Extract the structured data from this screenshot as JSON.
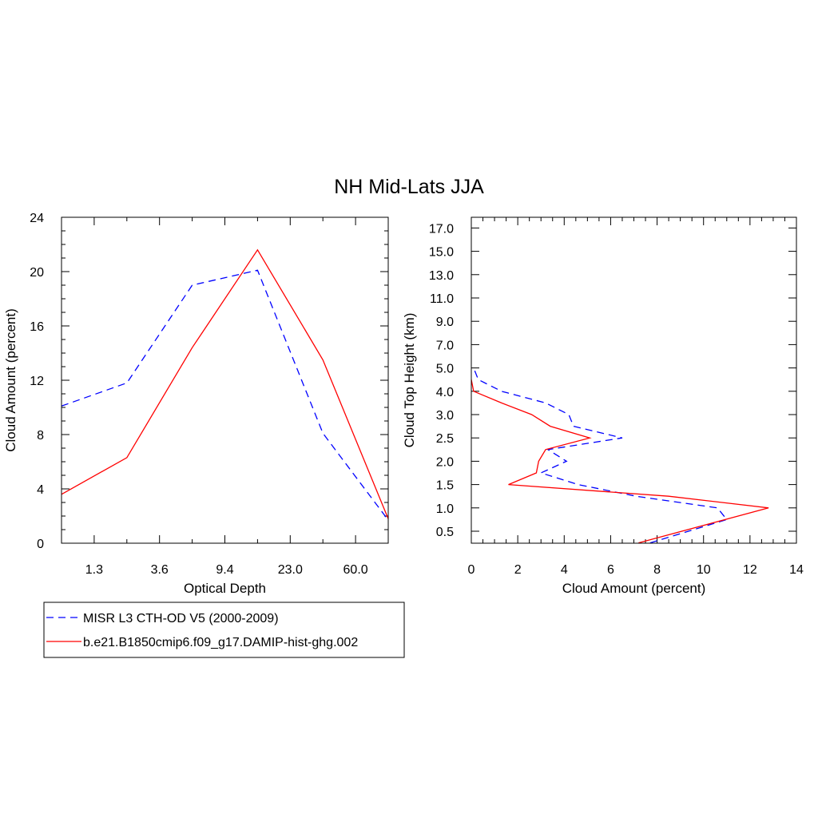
{
  "title": "NH Mid-Lats JJA",
  "chart_data": [
    {
      "type": "line",
      "xlabel": "Optical Depth",
      "ylabel": "Cloud Amount (percent)",
      "categories": [
        "",
        "1.3",
        "",
        "3.6",
        "",
        "9.4",
        "",
        "23.0",
        "",
        "60.0",
        ""
      ],
      "ylim": [
        0,
        24
      ],
      "yticks": [
        "0",
        "4",
        "8",
        "12",
        "16",
        "20",
        "24"
      ],
      "series": [
        {
          "name": "MISR L3 CTH-OD V5 (2000-2009)",
          "color": "#0000ff",
          "dash": "dashed",
          "x": [
            0,
            2,
            4,
            6,
            8,
            10
          ],
          "y": [
            10.1,
            11.8,
            19.0,
            20.1,
            8.1,
            1.7
          ]
        },
        {
          "name": "b.e21.B1850cmip6.f09_g17.DAMIP-hist-ghg.002",
          "color": "#ff0000",
          "dash": "solid",
          "x": [
            0,
            2,
            4,
            6,
            8,
            10
          ],
          "y": [
            3.6,
            6.3,
            14.4,
            21.6,
            13.5,
            1.8
          ]
        }
      ]
    },
    {
      "type": "line",
      "xlabel": "Cloud Amount (percent)",
      "ylabel": "Cloud Top Height (km)",
      "xlim": [
        0,
        14
      ],
      "xticks": [
        "0",
        "2",
        "4",
        "6",
        "8",
        "10",
        "12",
        "14"
      ],
      "ytick_labels": [
        "0.5",
        "1.0",
        "1.5",
        "2.0",
        "2.5",
        "3.0",
        "4.0",
        "5.0",
        "7.0",
        "9.0",
        "11.0",
        "13.0",
        "15.0",
        "17.0"
      ],
      "series": [
        {
          "name": "MISR L3 CTH-OD V5 (2000-2009)",
          "color": "#0000ff",
          "dash": "dashed",
          "x": [
            7.7,
            11.0,
            10.6,
            7.1,
            4.6,
            3.0,
            4.1,
            3.3,
            6.5,
            4.4,
            4.2,
            3.2,
            1.3,
            0.3,
            0.1
          ],
          "y_index": [
            -0.5,
            0.5,
            1.0,
            1.5,
            2.0,
            2.5,
            3.0,
            3.5,
            4.0,
            4.5,
            5.0,
            5.5,
            6.0,
            6.5,
            7.0
          ]
        },
        {
          "name": "b.e21.B1850cmip6.f09_g17.DAMIP-hist-ghg.002",
          "color": "#ff0000",
          "dash": "solid",
          "x": [
            7.2,
            12.8,
            8.5,
            1.6,
            2.8,
            2.9,
            3.2,
            5.1,
            3.4,
            2.6,
            1.3,
            0.1,
            0.0
          ],
          "y_index": [
            -0.5,
            1.0,
            1.5,
            2.0,
            2.5,
            3.0,
            3.5,
            4.0,
            4.5,
            5.0,
            5.5,
            6.0,
            6.5
          ]
        }
      ]
    }
  ],
  "legend": {
    "items": [
      {
        "label": "MISR L3 CTH-OD V5 (2000-2009)",
        "color": "#0000ff",
        "dash": "dashed"
      },
      {
        "label": "b.e21.B1850cmip6.f09_g17.DAMIP-hist-ghg.002",
        "color": "#ff0000",
        "dash": "solid"
      }
    ]
  }
}
